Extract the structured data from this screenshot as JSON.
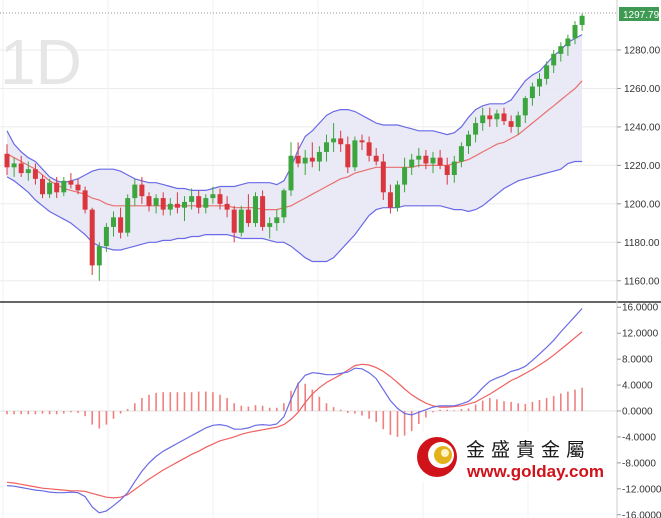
{
  "watermark": "1D",
  "last_price_label": "1297.79",
  "logo": {
    "chinese": "金盛貴金屬",
    "url": "www.golday.com"
  },
  "colors": {
    "up": "#3da53d",
    "down": "#d9363e",
    "bands": "#6a6ae6",
    "band_fill": "#e8e8f6",
    "mid": "#e8706e",
    "macd_line": "#6a6ae6",
    "signal_line": "#f06060",
    "hist": "#f08080",
    "label_bg": "#3e9a52"
  },
  "chart_data": [
    {
      "type": "candlestick",
      "title": "",
      "ylim": [
        1150,
        1306
      ],
      "yticks": [
        "1280.00",
        "1260.00",
        "1240.00",
        "1220.00",
        "1200.00",
        "1180.00",
        "1160.00"
      ],
      "ytick_values": [
        1280,
        1260,
        1240,
        1220,
        1200,
        1180,
        1160
      ],
      "overlays": [
        "bollinger_upper",
        "bollinger_mid",
        "bollinger_lower"
      ],
      "candles": [
        {
          "o": 1226,
          "h": 1231,
          "l": 1215,
          "c": 1219
        },
        {
          "o": 1219,
          "h": 1224,
          "l": 1214,
          "c": 1221
        },
        {
          "o": 1221,
          "h": 1225,
          "l": 1214,
          "c": 1216
        },
        {
          "o": 1216,
          "h": 1222,
          "l": 1212,
          "c": 1218
        },
        {
          "o": 1218,
          "h": 1221,
          "l": 1210,
          "c": 1213
        },
        {
          "o": 1213,
          "h": 1215,
          "l": 1203,
          "c": 1205
        },
        {
          "o": 1205,
          "h": 1213,
          "l": 1203,
          "c": 1211
        },
        {
          "o": 1211,
          "h": 1214,
          "l": 1203,
          "c": 1206
        },
        {
          "o": 1206,
          "h": 1214,
          "l": 1204,
          "c": 1212
        },
        {
          "o": 1212,
          "h": 1216,
          "l": 1208,
          "c": 1210
        },
        {
          "o": 1210,
          "h": 1213,
          "l": 1205,
          "c": 1207
        },
        {
          "o": 1207,
          "h": 1209,
          "l": 1195,
          "c": 1197
        },
        {
          "o": 1197,
          "h": 1198,
          "l": 1163,
          "c": 1168
        },
        {
          "o": 1168,
          "h": 1180,
          "l": 1160,
          "c": 1178
        },
        {
          "o": 1178,
          "h": 1190,
          "l": 1175,
          "c": 1188
        },
        {
          "o": 1188,
          "h": 1196,
          "l": 1183,
          "c": 1193
        },
        {
          "o": 1193,
          "h": 1198,
          "l": 1182,
          "c": 1185
        },
        {
          "o": 1185,
          "h": 1205,
          "l": 1183,
          "c": 1203
        },
        {
          "o": 1203,
          "h": 1213,
          "l": 1199,
          "c": 1210
        },
        {
          "o": 1210,
          "h": 1214,
          "l": 1200,
          "c": 1204
        },
        {
          "o": 1204,
          "h": 1206,
          "l": 1196,
          "c": 1199
        },
        {
          "o": 1199,
          "h": 1205,
          "l": 1195,
          "c": 1203
        },
        {
          "o": 1203,
          "h": 1206,
          "l": 1194,
          "c": 1197
        },
        {
          "o": 1197,
          "h": 1203,
          "l": 1194,
          "c": 1200
        },
        {
          "o": 1200,
          "h": 1206,
          "l": 1195,
          "c": 1198
        },
        {
          "o": 1198,
          "h": 1204,
          "l": 1191,
          "c": 1201
        },
        {
          "o": 1201,
          "h": 1208,
          "l": 1197,
          "c": 1204
        },
        {
          "o": 1204,
          "h": 1207,
          "l": 1195,
          "c": 1198
        },
        {
          "o": 1198,
          "h": 1205,
          "l": 1195,
          "c": 1203
        },
        {
          "o": 1203,
          "h": 1209,
          "l": 1200,
          "c": 1205
        },
        {
          "o": 1205,
          "h": 1208,
          "l": 1197,
          "c": 1200
        },
        {
          "o": 1200,
          "h": 1204,
          "l": 1193,
          "c": 1197
        },
        {
          "o": 1197,
          "h": 1199,
          "l": 1180,
          "c": 1185
        },
        {
          "o": 1185,
          "h": 1199,
          "l": 1183,
          "c": 1197
        },
        {
          "o": 1197,
          "h": 1205,
          "l": 1188,
          "c": 1190
        },
        {
          "o": 1190,
          "h": 1206,
          "l": 1188,
          "c": 1204
        },
        {
          "o": 1204,
          "h": 1207,
          "l": 1186,
          "c": 1188
        },
        {
          "o": 1188,
          "h": 1193,
          "l": 1182,
          "c": 1190
        },
        {
          "o": 1190,
          "h": 1197,
          "l": 1186,
          "c": 1193
        },
        {
          "o": 1193,
          "h": 1208,
          "l": 1190,
          "c": 1207
        },
        {
          "o": 1207,
          "h": 1232,
          "l": 1204,
          "c": 1225
        },
        {
          "o": 1225,
          "h": 1232,
          "l": 1219,
          "c": 1221
        },
        {
          "o": 1221,
          "h": 1228,
          "l": 1215,
          "c": 1224
        },
        {
          "o": 1224,
          "h": 1232,
          "l": 1219,
          "c": 1222
        },
        {
          "o": 1222,
          "h": 1230,
          "l": 1217,
          "c": 1227
        },
        {
          "o": 1227,
          "h": 1236,
          "l": 1222,
          "c": 1232
        },
        {
          "o": 1232,
          "h": 1242,
          "l": 1227,
          "c": 1234
        },
        {
          "o": 1234,
          "h": 1238,
          "l": 1227,
          "c": 1231
        },
        {
          "o": 1231,
          "h": 1235,
          "l": 1216,
          "c": 1219
        },
        {
          "o": 1219,
          "h": 1235,
          "l": 1217,
          "c": 1233
        },
        {
          "o": 1233,
          "h": 1236,
          "l": 1228,
          "c": 1232
        },
        {
          "o": 1232,
          "h": 1235,
          "l": 1222,
          "c": 1225
        },
        {
          "o": 1225,
          "h": 1229,
          "l": 1220,
          "c": 1222
        },
        {
          "o": 1222,
          "h": 1226,
          "l": 1202,
          "c": 1206
        },
        {
          "o": 1206,
          "h": 1210,
          "l": 1195,
          "c": 1198
        },
        {
          "o": 1198,
          "h": 1212,
          "l": 1196,
          "c": 1210
        },
        {
          "o": 1210,
          "h": 1224,
          "l": 1206,
          "c": 1219
        },
        {
          "o": 1219,
          "h": 1226,
          "l": 1215,
          "c": 1223
        },
        {
          "o": 1223,
          "h": 1229,
          "l": 1219,
          "c": 1225
        },
        {
          "o": 1225,
          "h": 1228,
          "l": 1218,
          "c": 1221
        },
        {
          "o": 1221,
          "h": 1227,
          "l": 1216,
          "c": 1224
        },
        {
          "o": 1224,
          "h": 1228,
          "l": 1218,
          "c": 1220
        },
        {
          "o": 1220,
          "h": 1224,
          "l": 1210,
          "c": 1215
        },
        {
          "o": 1215,
          "h": 1225,
          "l": 1211,
          "c": 1222
        },
        {
          "o": 1222,
          "h": 1232,
          "l": 1219,
          "c": 1230
        },
        {
          "o": 1230,
          "h": 1238,
          "l": 1226,
          "c": 1236
        },
        {
          "o": 1236,
          "h": 1245,
          "l": 1232,
          "c": 1242
        },
        {
          "o": 1242,
          "h": 1250,
          "l": 1238,
          "c": 1246
        },
        {
          "o": 1246,
          "h": 1250,
          "l": 1240,
          "c": 1244
        },
        {
          "o": 1244,
          "h": 1249,
          "l": 1240,
          "c": 1247
        },
        {
          "o": 1247,
          "h": 1250,
          "l": 1241,
          "c": 1243
        },
        {
          "o": 1243,
          "h": 1246,
          "l": 1237,
          "c": 1240
        },
        {
          "o": 1240,
          "h": 1248,
          "l": 1236,
          "c": 1246
        },
        {
          "o": 1246,
          "h": 1256,
          "l": 1242,
          "c": 1255
        },
        {
          "o": 1255,
          "h": 1263,
          "l": 1251,
          "c": 1261
        },
        {
          "o": 1261,
          "h": 1268,
          "l": 1256,
          "c": 1265
        },
        {
          "o": 1265,
          "h": 1274,
          "l": 1262,
          "c": 1272
        },
        {
          "o": 1272,
          "h": 1280,
          "l": 1268,
          "c": 1278
        },
        {
          "o": 1278,
          "h": 1284,
          "l": 1274,
          "c": 1282
        },
        {
          "o": 1282,
          "h": 1288,
          "l": 1277,
          "c": 1286
        },
        {
          "o": 1286,
          "h": 1295,
          "l": 1283,
          "c": 1293
        },
        {
          "o": 1293,
          "h": 1299,
          "l": 1290,
          "c": 1297.79
        }
      ],
      "bollinger": {
        "upper": [
          1238,
          1231,
          1227,
          1224,
          1222,
          1218,
          1214,
          1212,
          1211,
          1212,
          1213,
          1215,
          1217,
          1218,
          1218,
          1218,
          1217,
          1215,
          1213,
          1212,
          1211,
          1211,
          1210,
          1209,
          1208,
          1208,
          1207,
          1207,
          1207,
          1208,
          1209,
          1209,
          1209,
          1210,
          1211,
          1211,
          1211,
          1211,
          1210,
          1212,
          1219,
          1228,
          1235,
          1238,
          1242,
          1246,
          1248,
          1249,
          1249,
          1248,
          1246,
          1244,
          1242,
          1241,
          1241,
          1241,
          1240,
          1239,
          1238,
          1238,
          1238,
          1237,
          1236,
          1237,
          1240,
          1245,
          1249,
          1251,
          1252,
          1252,
          1252,
          1254,
          1259,
          1264,
          1267,
          1269,
          1273,
          1277,
          1280,
          1284,
          1286,
          1288
        ],
        "middle": [
          1226,
          1224,
          1222,
          1220,
          1218,
          1215,
          1212,
          1210,
          1208,
          1207,
          1206,
          1205,
          1203,
          1202,
          1200,
          1199,
          1199,
          1199,
          1199,
          1199,
          1199,
          1199,
          1199,
          1199,
          1199,
          1199,
          1199,
          1199,
          1199,
          1199,
          1199,
          1199,
          1198,
          1198,
          1198,
          1198,
          1197,
          1197,
          1197,
          1198,
          1199,
          1201,
          1203,
          1205,
          1207,
          1209,
          1211,
          1213,
          1214,
          1216,
          1217,
          1218,
          1219,
          1219,
          1219,
          1219,
          1219,
          1219,
          1220,
          1220,
          1220,
          1220,
          1220,
          1221,
          1222,
          1223,
          1225,
          1227,
          1229,
          1231,
          1232,
          1234,
          1236,
          1239,
          1242,
          1245,
          1248,
          1251,
          1254,
          1257,
          1260,
          1264
        ],
        "lower": [
          1214,
          1212,
          1209,
          1206,
          1202,
          1199,
          1196,
          1194,
          1192,
          1190,
          1187,
          1184,
          1180,
          1178,
          1177,
          1176,
          1176,
          1177,
          1178,
          1179,
          1180,
          1180,
          1181,
          1181,
          1182,
          1182,
          1183,
          1183,
          1184,
          1184,
          1184,
          1184,
          1183,
          1182,
          1182,
          1182,
          1182,
          1181,
          1180,
          1180,
          1178,
          1175,
          1172,
          1170,
          1170,
          1170,
          1172,
          1176,
          1180,
          1184,
          1189,
          1194,
          1197,
          1198,
          1198,
          1198,
          1199,
          1199,
          1199,
          1199,
          1199,
          1199,
          1198,
          1197,
          1197,
          1196,
          1197,
          1199,
          1202,
          1205,
          1208,
          1210,
          1212,
          1213,
          1214,
          1215,
          1216,
          1217,
          1218,
          1221,
          1222,
          1222
        ]
      }
    },
    {
      "type": "macd",
      "title": "",
      "ylim": [
        -16.5,
        16.5
      ],
      "yticks": [
        "16.0000",
        "12.0000",
        "8.0000",
        "4.0000",
        "0.0000",
        "-4.0000",
        "-8.0000",
        "-12.0000",
        "-16.0000"
      ],
      "ytick_values": [
        16,
        12,
        8,
        4,
        0,
        -4,
        -8,
        -12,
        -16
      ],
      "macd": [
        -11.5,
        -11.6,
        -11.8,
        -12.0,
        -12.2,
        -12.3,
        -12.5,
        -12.6,
        -12.6,
        -12.5,
        -12.6,
        -13.2,
        -14.8,
        -15.7,
        -15.4,
        -14.6,
        -13.7,
        -12.6,
        -10.9,
        -9.3,
        -8.0,
        -7.0,
        -6.2,
        -5.6,
        -5.0,
        -4.4,
        -3.8,
        -3.2,
        -2.6,
        -2.2,
        -2.1,
        -2.3,
        -2.8,
        -2.8,
        -2.6,
        -2.2,
        -2.1,
        -2.2,
        -2.0,
        -0.9,
        1.8,
        4.2,
        5.5,
        5.9,
        5.8,
        5.6,
        5.6,
        5.8,
        6.0,
        6.6,
        6.5,
        5.9,
        5.0,
        3.3,
        1.6,
        0.4,
        -0.4,
        -0.6,
        -0.2,
        0.2,
        0.6,
        0.8,
        0.8,
        0.8,
        1.1,
        1.5,
        2.4,
        3.6,
        4.6,
        5.1,
        5.5,
        6.1,
        6.4,
        6.9,
        7.8,
        8.8,
        9.8,
        10.9,
        12.2,
        13.4,
        14.6,
        15.8
      ],
      "signal": [
        -11.0,
        -11.1,
        -11.3,
        -11.5,
        -11.7,
        -11.9,
        -12.0,
        -12.1,
        -12.2,
        -12.3,
        -12.3,
        -12.4,
        -12.7,
        -13.0,
        -13.3,
        -13.4,
        -13.3,
        -12.9,
        -12.1,
        -11.3,
        -10.5,
        -9.8,
        -9.1,
        -8.5,
        -7.9,
        -7.3,
        -6.7,
        -6.2,
        -5.6,
        -5.1,
        -4.6,
        -4.3,
        -4.0,
        -3.6,
        -3.3,
        -3.1,
        -2.9,
        -2.7,
        -2.5,
        -2.1,
        -1.3,
        -0.2,
        1.3,
        2.6,
        3.6,
        4.4,
        5.0,
        5.6,
        6.3,
        7.0,
        7.2,
        7.1,
        6.7,
        6.1,
        5.3,
        4.4,
        3.4,
        2.5,
        1.8,
        1.2,
        0.8,
        0.6,
        0.6,
        0.7,
        0.8,
        1.1,
        1.4,
        2.0,
        2.6,
        3.3,
        4.0,
        4.7,
        5.2,
        5.8,
        6.4,
        7.1,
        7.8,
        8.6,
        9.5,
        10.4,
        11.3,
        12.2
      ],
      "histogram": [
        -0.5,
        -0.5,
        -0.5,
        -0.5,
        -0.5,
        -0.4,
        -0.5,
        -0.5,
        -0.4,
        -0.2,
        -0.3,
        -0.8,
        -2.1,
        -2.7,
        -2.1,
        -1.2,
        -0.4,
        0.3,
        1.2,
        2.0,
        2.5,
        2.8,
        2.9,
        2.9,
        2.9,
        2.9,
        2.9,
        3.0,
        3.0,
        2.9,
        2.5,
        2.0,
        1.2,
        0.8,
        0.7,
        0.9,
        0.8,
        0.5,
        0.5,
        1.2,
        3.1,
        4.4,
        4.2,
        3.3,
        2.2,
        1.2,
        0.6,
        0.2,
        -0.3,
        -0.4,
        -0.7,
        -1.2,
        -1.7,
        -2.8,
        -3.7,
        -4.0,
        -3.8,
        -3.1,
        -2.0,
        -1.0,
        -0.2,
        0.2,
        0.2,
        0.1,
        0.3,
        0.4,
        1.0,
        1.6,
        2.0,
        1.8,
        1.5,
        1.4,
        1.2,
        1.1,
        1.4,
        1.7,
        2.0,
        2.3,
        2.7,
        3.0,
        3.3,
        3.6
      ]
    }
  ]
}
